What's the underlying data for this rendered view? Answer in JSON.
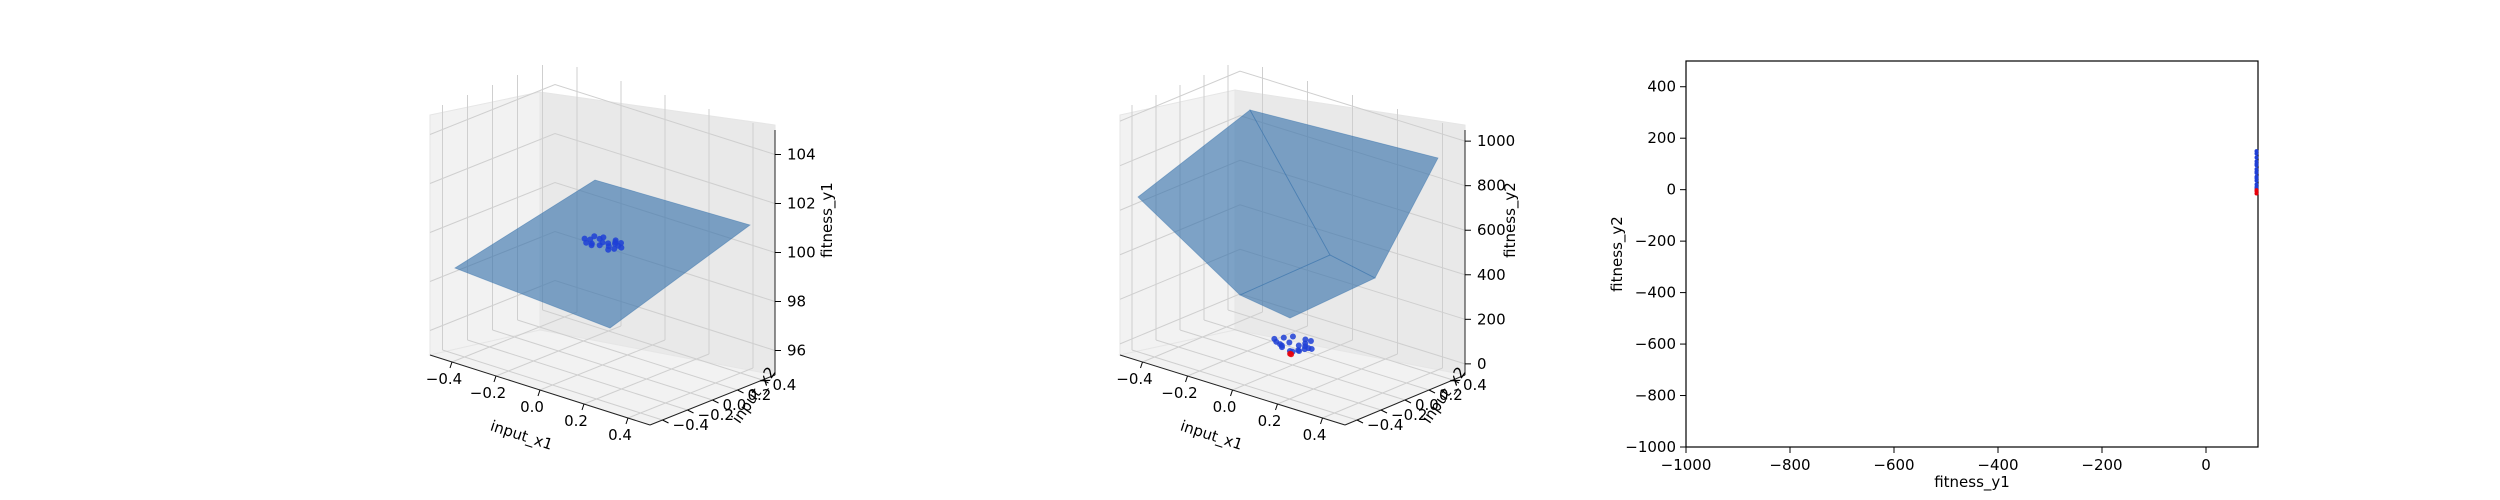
{
  "figure": {
    "subplot1": {
      "xlabel": "input_x1",
      "ylabel": "input_x2",
      "zlabel": "fitness_y1",
      "xticks": [
        "−0.4",
        "−0.2",
        "0.0",
        "0.2",
        "0.4"
      ],
      "yticks": [
        "−0.4",
        "−0.2",
        "0.0",
        "0.2",
        "0.4"
      ],
      "zticks": [
        "96",
        "98",
        "100",
        "102",
        "104"
      ]
    },
    "subplot2": {
      "xlabel": "input_x1",
      "ylabel": "input_x2",
      "zlabel": "fitness_y2",
      "xticks": [
        "−0.4",
        "−0.2",
        "0.0",
        "0.2",
        "0.4"
      ],
      "yticks": [
        "−0.4",
        "−0.2",
        "0.0",
        "0.2",
        "0.4"
      ],
      "zticks": [
        "0",
        "200",
        "400",
        "600",
        "800",
        "1000"
      ]
    },
    "subplot3": {
      "xlabel": "fitness_y1",
      "ylabel": "fitness_y2",
      "xticks": [
        "−1000",
        "−800",
        "−600",
        "−400",
        "−200",
        "0"
      ],
      "yticks": [
        "−1000",
        "−800",
        "−600",
        "−400",
        "−200",
        "0",
        "200",
        "400"
      ]
    }
  },
  "chart_data": [
    {
      "type": "scatter",
      "projection": "3d",
      "surface": "plane z = 100 over x1, x2 in [-0.5, 0.5]",
      "xlim": [
        -0.5,
        0.5
      ],
      "ylim": [
        -0.5,
        0.5
      ],
      "zlim": [
        95,
        105
      ],
      "series": [
        {
          "color": "#1f3fd6",
          "points": [
            [
              0.02,
              0.01,
              100
            ],
            [
              0.04,
              -0.02,
              100
            ],
            [
              -0.03,
              0.03,
              100
            ],
            [
              0.01,
              -0.04,
              100
            ],
            [
              0.06,
              0.02,
              100
            ],
            [
              -0.05,
              -0.01,
              100
            ],
            [
              0.03,
              0.05,
              100
            ],
            [
              -0.02,
              -0.05,
              100
            ],
            [
              0.07,
              -0.03,
              100
            ],
            [
              -0.06,
              0.04,
              100
            ],
            [
              0.0,
              0.0,
              100
            ],
            [
              0.05,
              0.06,
              100
            ],
            [
              -0.04,
              -0.06,
              100
            ],
            [
              0.08,
              0.01,
              100
            ],
            [
              -0.07,
              -0.02,
              100
            ],
            [
              0.02,
              0.07,
              100
            ],
            [
              -0.01,
              -0.07,
              100
            ],
            [
              0.06,
              -0.06,
              100
            ],
            [
              -0.03,
              0.06,
              100
            ],
            [
              0.04,
              0.03,
              100
            ]
          ]
        }
      ],
      "grid": true
    },
    {
      "type": "scatter",
      "projection": "3d",
      "surface": "V-shaped surface, minimum near x1 = 0, x2 = 0, rising to about 1000 at the edges",
      "xlim": [
        -0.5,
        0.5
      ],
      "ylim": [
        -0.5,
        0.5
      ],
      "zlim": [
        -50,
        1050
      ],
      "series": [
        {
          "color": "#1f3fd6",
          "points": [
            [
              0.02,
              0.01,
              20
            ],
            [
              0.04,
              -0.02,
              30
            ],
            [
              -0.03,
              0.03,
              35
            ],
            [
              0.01,
              -0.04,
              25
            ],
            [
              0.06,
              0.02,
              40
            ],
            [
              -0.05,
              -0.01,
              30
            ],
            [
              0.03,
              0.05,
              45
            ],
            [
              -0.02,
              -0.05,
              35
            ],
            [
              0.07,
              -0.03,
              50
            ],
            [
              -0.06,
              0.04,
              45
            ],
            [
              0.0,
              0.0,
              10
            ],
            [
              0.05,
              0.06,
              60
            ],
            [
              -0.04,
              -0.06,
              55
            ],
            [
              0.08,
              0.01,
              45
            ],
            [
              -0.07,
              -0.02,
              50
            ],
            [
              0.02,
              0.07,
              55
            ],
            [
              -0.01,
              -0.07,
              50
            ],
            [
              0.06,
              -0.06,
              70
            ],
            [
              -0.03,
              0.06,
              55
            ],
            [
              0.04,
              0.03,
              40
            ]
          ]
        },
        {
          "color": "#e8000b",
          "points": [
            [
              0.0,
              -0.02,
              5
            ],
            [
              0.01,
              -0.03,
              8
            ]
          ]
        }
      ],
      "grid": true
    },
    {
      "type": "scatter",
      "xlim": [
        -1000,
        100
      ],
      "ylim": [
        -1000,
        500
      ],
      "grid": false,
      "series": [
        {
          "color": "#1f3fd6",
          "points": [
            [
              98,
              5
            ],
            [
              99,
              20
            ],
            [
              100,
              35
            ],
            [
              98,
              50
            ],
            [
              99,
              65
            ],
            [
              100,
              80
            ],
            [
              98,
              95
            ],
            [
              99,
              110
            ],
            [
              100,
              125
            ],
            [
              99,
              140
            ],
            [
              98,
              150
            ],
            [
              100,
              10
            ],
            [
              99,
              45
            ],
            [
              98,
              70
            ],
            [
              100,
              100
            ]
          ]
        },
        {
          "color": "#e8000b",
          "points": [
            [
              98,
              -5
            ],
            [
              99,
              -15
            ],
            [
              100,
              -2
            ]
          ]
        }
      ]
    }
  ]
}
